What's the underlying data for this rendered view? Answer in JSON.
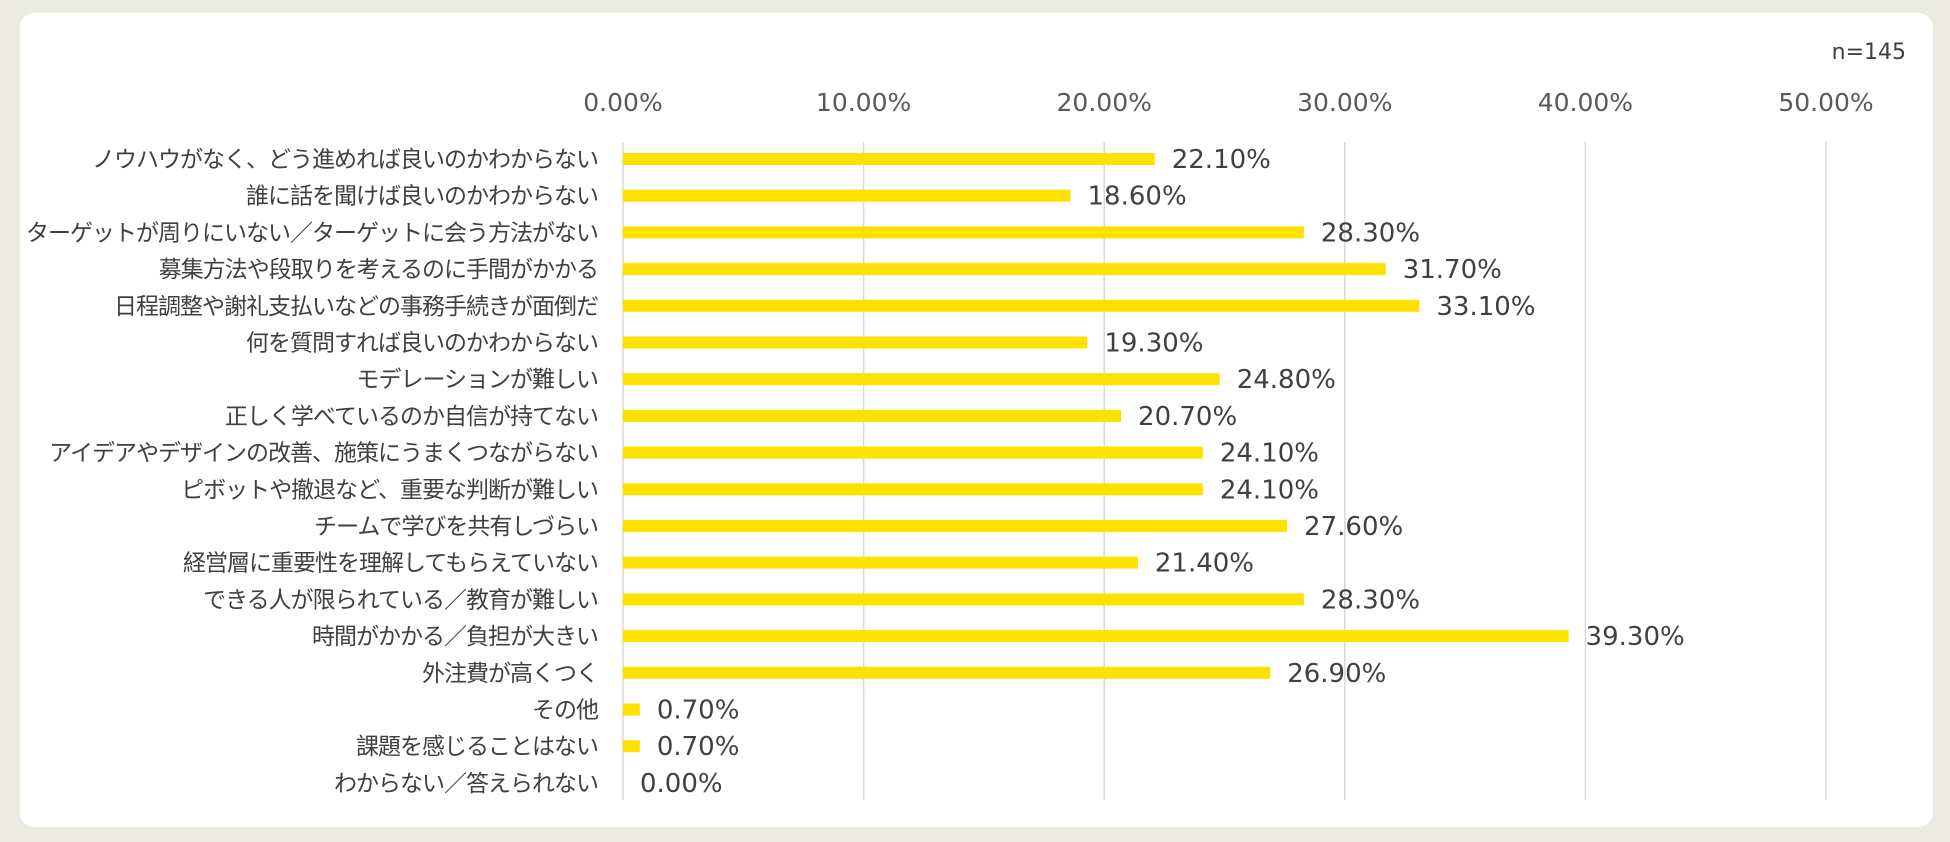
{
  "chart_data": {
    "type": "bar",
    "orientation": "horizontal",
    "note": "n=145",
    "categories": [
      "ノウハウがなく、どう進めれば良いのかわからない",
      "誰に話を聞けば良いのかわからない",
      "ターゲットが周りにいない／ターゲットに会う方法がない",
      "募集方法や段取りを考えるのに手間がかかる",
      "日程調整や謝礼支払いなどの事務手続きが面倒だ",
      "何を質問すれば良いのかわからない",
      "モデレーションが難しい",
      "正しく学べているのか自信が持てない",
      "アイデアやデザインの改善、施策にうまくつながらない",
      "ピボットや撤退など、重要な判断が難しい",
      "チームで学びを共有しづらい",
      "経営層に重要性を理解してもらえていない",
      "できる人が限られている／教育が難しい",
      "時間がかかる／負担が大きい",
      "外注費が高くつく",
      "その他",
      "課題を感じることはない",
      "わからない／答えられない"
    ],
    "values": [
      22.1,
      18.6,
      28.3,
      31.7,
      33.1,
      19.3,
      24.8,
      20.7,
      24.1,
      24.1,
      27.6,
      21.4,
      28.3,
      39.3,
      26.9,
      0.7,
      0.7,
      0.0
    ],
    "value_labels": [
      "22.10%",
      "18.60%",
      "28.30%",
      "31.70%",
      "33.10%",
      "19.30%",
      "24.80%",
      "20.70%",
      "24.10%",
      "24.10%",
      "27.60%",
      "21.40%",
      "28.30%",
      "39.30%",
      "26.90%",
      "0.70%",
      "0.70%",
      "0.00%"
    ],
    "xlim": [
      0,
      50
    ],
    "xticks": [
      "0.00%",
      "10.00%",
      "20.00%",
      "30.00%",
      "40.00%",
      "50.00%"
    ],
    "axis_position": "top",
    "grid": true,
    "bar_color": "#ffe100",
    "gridline_color": "#d9d9d9"
  }
}
